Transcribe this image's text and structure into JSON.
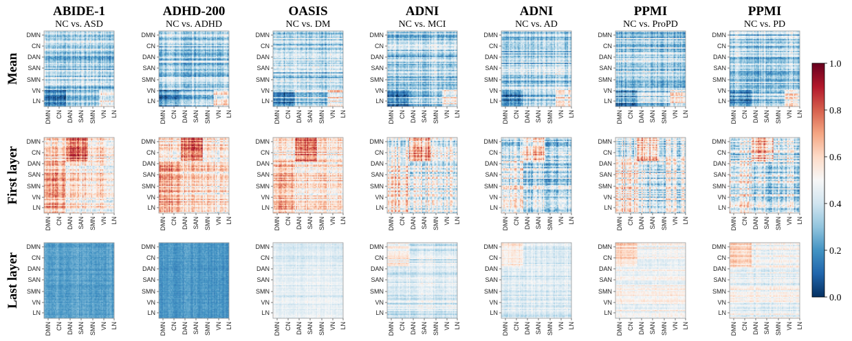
{
  "chart_data": {
    "type": "heatmap",
    "columns": [
      {
        "title": "ABIDE-1",
        "subtitle": "NC vs. ASD"
      },
      {
        "title": "ADHD-200",
        "subtitle": "NC vs. ADHD"
      },
      {
        "title": "OASIS",
        "subtitle": "NC vs. DM"
      },
      {
        "title": "ADNI",
        "subtitle": "NC vs. MCI"
      },
      {
        "title": "ADNI",
        "subtitle": "NC vs. AD"
      },
      {
        "title": "PPMI",
        "subtitle": "NC vs. ProPD"
      },
      {
        "title": "PPMI",
        "subtitle": "NC vs. PD"
      }
    ],
    "rows": [
      "Mean",
      "First layer",
      "Last layer"
    ],
    "networks": [
      "DMN",
      "CN",
      "DAN",
      "SAN",
      "SMN",
      "VN",
      "LN"
    ],
    "colorbar": {
      "range": [
        0.0,
        1.0
      ],
      "ticks": [
        "0.0",
        "0.2",
        "0.4",
        "0.6",
        "0.8",
        "1.0"
      ],
      "colormap": "RdBu_r",
      "colors": [
        "#053061",
        "#2166ac",
        "#4393c3",
        "#92c5de",
        "#d1e5f0",
        "#f7f7f7",
        "#fddbc7",
        "#f4a582",
        "#d6604d",
        "#b2182b",
        "#67001f"
      ]
    }
  }
}
